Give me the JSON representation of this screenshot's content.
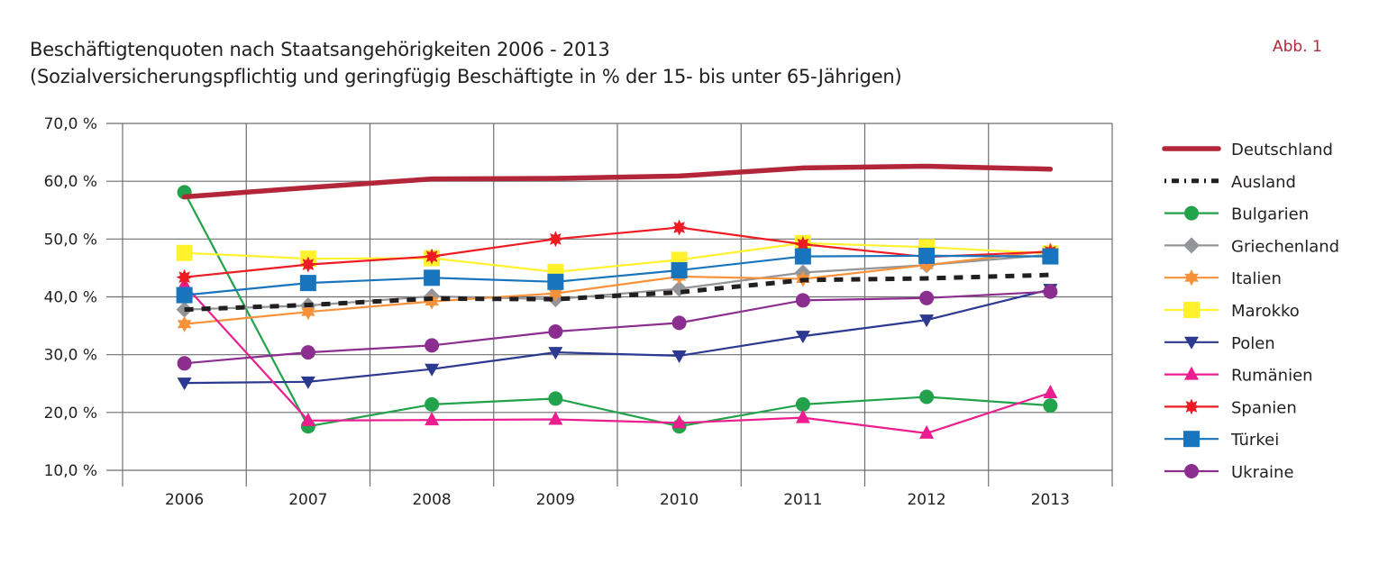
{
  "header": {
    "title_line1": "Beschäftigtenquoten nach Staatsangehörigkeiten 2006 - 2013",
    "title_line2": "(Sozialversicherungspflichtig und geringfügig Beschäftigte in % der 15- bis unter 65-Jährigen)",
    "figure_label": "Abb. 1"
  },
  "chart_data": {
    "type": "line",
    "title": "Beschäftigtenquoten nach Staatsangehörigkeiten 2006 - 2013",
    "subtitle": "(Sozialversicherungspflichtig und geringfügig Beschäftigte in % der 15- bis unter 65-Jährigen)",
    "xlabel": "",
    "ylabel": "",
    "x": [
      "2006",
      "2007",
      "2008",
      "2009",
      "2010",
      "2011",
      "2012",
      "2013"
    ],
    "ylim": [
      10,
      70
    ],
    "yticks": [
      70,
      60,
      50,
      40,
      30,
      20,
      10
    ],
    "ytick_labels": [
      "70,0 %",
      "60,0 %",
      "50,0 %",
      "40,0 %",
      "30,0 %",
      "20,0 %",
      "10,0 %"
    ],
    "grid": true,
    "legend_position": "right",
    "series": [
      {
        "name": "Deutschland",
        "color": "#b3263a",
        "marker": "none",
        "style": "thick",
        "values": [
          57.3,
          58.9,
          60.4,
          60.5,
          60.9,
          62.3,
          62.6,
          62.1
        ]
      },
      {
        "name": "Ausland",
        "color": "#231f20",
        "marker": "none",
        "style": "dashed",
        "values": [
          37.8,
          38.6,
          39.7,
          39.6,
          40.8,
          42.9,
          43.2,
          43.8
        ]
      },
      {
        "name": "Bulgarien",
        "color": "#22a24a",
        "marker": "circle",
        "style": "solid",
        "values": [
          58.1,
          17.6,
          21.4,
          22.4,
          17.6,
          21.4,
          22.7,
          21.2
        ]
      },
      {
        "name": "Griechenland",
        "color": "#939598",
        "marker": "diamond",
        "style": "solid",
        "values": [
          37.8,
          38.5,
          40.1,
          39.6,
          41.4,
          44.2,
          45.5,
          47.3
        ]
      },
      {
        "name": "Italien",
        "color": "#f7923a",
        "marker": "star6",
        "style": "solid",
        "values": [
          35.3,
          37.4,
          39.2,
          40.6,
          43.5,
          43.1,
          45.5,
          48.0
        ]
      },
      {
        "name": "Marokko",
        "color": "#fff22d",
        "marker": "square",
        "style": "solid",
        "values": [
          47.6,
          46.6,
          46.7,
          44.3,
          46.4,
          49.3,
          48.6,
          47.5
        ]
      },
      {
        "name": "Polen",
        "color": "#2b3990",
        "marker": "triangle-down",
        "style": "solid",
        "values": [
          25.1,
          25.3,
          27.5,
          30.4,
          29.8,
          33.2,
          36.0,
          41.3
        ]
      },
      {
        "name": "Rumänien",
        "color": "#ec1e8f",
        "marker": "triangle-up",
        "style": "solid",
        "values": [
          42.1,
          18.6,
          18.7,
          18.8,
          18.2,
          19.1,
          16.4,
          23.4
        ]
      },
      {
        "name": "Spanien",
        "color": "#ed1c24",
        "marker": "star8",
        "style": "solid",
        "values": [
          43.4,
          45.6,
          47.0,
          50.0,
          52.0,
          49.1,
          46.9,
          47.8
        ]
      },
      {
        "name": "Türkei",
        "color": "#1874bc",
        "marker": "square",
        "style": "solid",
        "values": [
          40.3,
          42.4,
          43.3,
          42.6,
          44.6,
          47.0,
          47.1,
          47.0
        ]
      },
      {
        "name": "Ukraine",
        "color": "#8b2e8f",
        "marker": "circle",
        "style": "solid",
        "values": [
          28.5,
          30.4,
          31.6,
          34.0,
          35.5,
          39.4,
          39.8,
          40.9
        ]
      }
    ]
  }
}
